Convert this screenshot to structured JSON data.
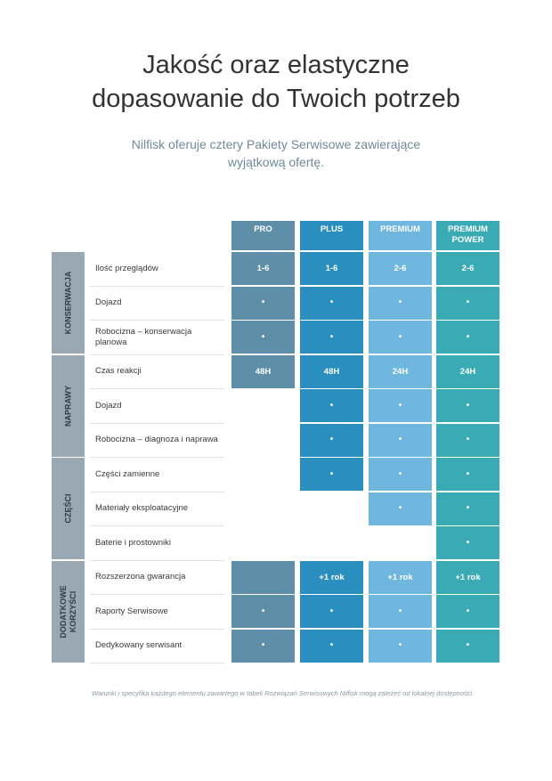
{
  "heading": {
    "line1": "Jakość oraz elastyczne",
    "line2": "dopasowanie do Twoich potrzeb"
  },
  "subheading": {
    "line1": "Nilfisk oferuje cztery Pakiety Serwisowe zawierające",
    "line2": "wyjątkową ofertę."
  },
  "plans": [
    {
      "id": "pro",
      "label": "PRO",
      "color": "#5f8fa8"
    },
    {
      "id": "plus",
      "label": "PLUS",
      "color": "#2a8fbf"
    },
    {
      "id": "premium",
      "label": "PREMIUM",
      "color": "#6fb7de"
    },
    {
      "id": "premium_power",
      "label": "PREMIUM POWER",
      "color": "#3aaab5"
    }
  ],
  "groups": [
    {
      "label": "KONSERWACJA",
      "rows": [
        {
          "label": "Ilość przeglądów",
          "values": [
            "1-6",
            "1-6",
            "2-6",
            "2-6"
          ]
        },
        {
          "label": "Dojazd",
          "values": [
            "•",
            "•",
            "•",
            "•"
          ]
        },
        {
          "label": "Robocizna – konserwacja planowa",
          "values": [
            "•",
            "•",
            "•",
            "•"
          ]
        }
      ]
    },
    {
      "label": "NAPRAWY",
      "rows": [
        {
          "label": "Czas reakcji",
          "values": [
            "48H",
            "48H",
            "24H",
            "24H"
          ]
        },
        {
          "label": "Dojazd",
          "values": [
            null,
            "•",
            "•",
            "•"
          ]
        },
        {
          "label": "Robocizna – diagnoza i naprawa",
          "values": [
            null,
            "•",
            "•",
            "•"
          ]
        }
      ]
    },
    {
      "label": "CZĘŚCI",
      "rows": [
        {
          "label": "Części zamienne",
          "values": [
            null,
            "•",
            "•",
            "•"
          ]
        },
        {
          "label": "Materiały eksploatacyjne",
          "values": [
            null,
            null,
            "•",
            "•"
          ]
        },
        {
          "label": "Baterie i prostowniki",
          "values": [
            null,
            null,
            null,
            "•"
          ]
        }
      ]
    },
    {
      "label": "DODATKOWE KORZYŚCI",
      "rows": [
        {
          "label": "Rozszerzona gwarancja",
          "values": [
            "",
            "+1 rok",
            "+1 rok",
            "+1 rok"
          ]
        },
        {
          "label": "Raporty Serwisowe",
          "values": [
            "•",
            "•",
            "•",
            "•"
          ]
        },
        {
          "label": "Dedykowany serwisant",
          "values": [
            "•",
            "•",
            "•",
            "•"
          ]
        }
      ]
    }
  ],
  "footnote": "Warunki i specyfika każdego elementu zawartego w tabeli Rozwiązań Serwisowych Nilfisk mogą zależeć od lokalnej dostępności."
}
